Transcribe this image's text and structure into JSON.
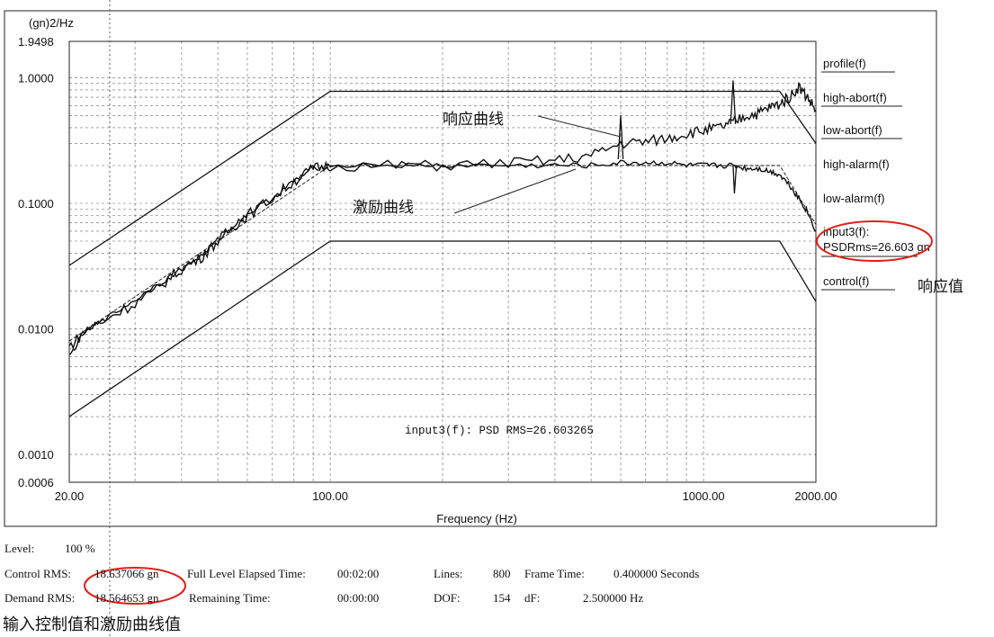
{
  "chart_data": {
    "type": "line",
    "y_unit_label": "(gn)2/Hz",
    "y_scale": "log",
    "x_scale": "log",
    "ylim": [
      0.0006,
      1.9498
    ],
    "xlim": [
      20,
      2000
    ],
    "xlabel": "Frequency (Hz)",
    "x_ticks": [
      {
        "v": 20,
        "label": "20.00"
      },
      {
        "v": 100,
        "label": "100.00"
      },
      {
        "v": 1000,
        "label": "1000.00"
      },
      {
        "v": 2000,
        "label": "2000.00"
      }
    ],
    "y_ticks": [
      {
        "v": 1.9498,
        "label": "1.9498"
      },
      {
        "v": 1.0,
        "label": "1.0000"
      },
      {
        "v": 0.1,
        "label": "0.1000"
      },
      {
        "v": 0.01,
        "label": "0.0100"
      },
      {
        "v": 0.001,
        "label": "0.0010"
      },
      {
        "v": 0.0006,
        "label": "0.0006"
      }
    ],
    "legend": [
      "profile(f)",
      "high-abort(f)",
      "low-abort(f)",
      "high-alarm(f)",
      "low-alarm(f)",
      "input3(f):",
      "PSDRms=26.603 gn",
      "control(f)"
    ],
    "series": [
      {
        "name": "high-abort(f)",
        "x": [
          20,
          100,
          1600,
          2000
        ],
        "y": [
          0.032,
          0.78,
          0.78,
          0.3
        ]
      },
      {
        "name": "low-abort(f)",
        "x": [
          20,
          100,
          1600,
          2000
        ],
        "y": [
          0.002,
          0.05,
          0.05,
          0.0165
        ]
      },
      {
        "name": "profile(f)",
        "x": [
          20,
          100,
          1600,
          2000
        ],
        "y": [
          0.008,
          0.2,
          0.2,
          0.068
        ]
      },
      {
        "name": "input3(f):",
        "x": [
          20,
          22,
          25,
          30,
          35,
          40,
          45,
          50,
          55,
          60,
          70,
          80,
          90,
          100,
          150,
          200,
          300,
          400,
          500,
          600,
          700,
          800,
          900,
          1000,
          1100,
          1200,
          1300,
          1400,
          1500,
          1600,
          1700,
          1800,
          1900,
          2000
        ],
        "y": [
          0.0072,
          0.0095,
          0.012,
          0.016,
          0.022,
          0.03,
          0.037,
          0.05,
          0.065,
          0.08,
          0.11,
          0.15,
          0.19,
          0.2,
          0.2,
          0.2,
          0.21,
          0.22,
          0.24,
          0.3,
          0.31,
          0.33,
          0.36,
          0.38,
          0.4,
          0.44,
          0.5,
          0.52,
          0.58,
          0.62,
          0.7,
          0.85,
          0.7,
          0.55
        ]
      },
      {
        "name": "control(f)",
        "x": [
          20,
          22,
          25,
          30,
          35,
          40,
          45,
          50,
          55,
          60,
          70,
          80,
          90,
          100,
          150,
          200,
          300,
          400,
          500,
          600,
          700,
          800,
          900,
          1000,
          1100,
          1200,
          1300,
          1400,
          1500,
          1600,
          1700,
          1800,
          1900,
          2000
        ],
        "y": [
          0.006,
          0.0095,
          0.012,
          0.017,
          0.023,
          0.03,
          0.038,
          0.051,
          0.066,
          0.082,
          0.11,
          0.15,
          0.19,
          0.2,
          0.2,
          0.2,
          0.2,
          0.2,
          0.2,
          0.21,
          0.21,
          0.21,
          0.2,
          0.2,
          0.2,
          0.2,
          0.19,
          0.19,
          0.18,
          0.17,
          0.14,
          0.11,
          0.085,
          0.06
        ]
      }
    ],
    "annotations": {
      "response_curve": "响应曲线",
      "excitation_curve": "激励曲线",
      "response_value": "响应值",
      "input_value": "输入控制值和激励曲线值",
      "psd_rms_text": "input3(f): PSD RMS=26.603265"
    }
  },
  "footer": {
    "level_label": "Level:",
    "level_value": "100 %",
    "control_rms_label": "Control RMS:",
    "control_rms_value": "18.637066 gn",
    "demand_rms_label": "Demand RMS:",
    "demand_rms_value": "18.564653 gn",
    "full_level_label": "Full Level Elapsed Time:",
    "full_level_value": "00:02:00",
    "remaining_label": "Remaining Time:",
    "remaining_value": "00:00:00",
    "lines_label": "Lines:",
    "lines_value": "800",
    "frame_time_label": "Frame Time:",
    "frame_time_value": "0.400000 Seconds",
    "dof_label": "DOF:",
    "dof_value": "154",
    "df_label": "dF:",
    "df_value": "2.500000 Hz"
  },
  "colors": {
    "highlight": "#e0201a",
    "ink": "#111111"
  }
}
